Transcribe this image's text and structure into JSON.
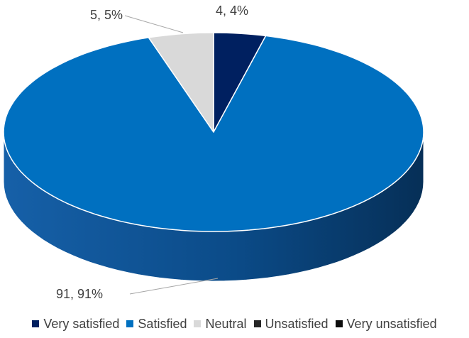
{
  "chart_data": {
    "type": "pie",
    "title": "",
    "three_d": true,
    "legend_position": "bottom",
    "label_format": "value, percent",
    "slices": [
      {
        "name": "Very satisfied",
        "value": 4,
        "percent": "4%",
        "label": "4, 4%",
        "color": "#002060"
      },
      {
        "name": "Satisfied",
        "value": 91,
        "percent": "91%",
        "label": "91, 91%",
        "color": "#0070C0"
      },
      {
        "name": "Neutral",
        "value": 5,
        "percent": "5%",
        "label": "5, 5%",
        "color": "#D9D9D9"
      },
      {
        "name": "Unsatisfied",
        "value": 0,
        "percent": "0%",
        "label": "",
        "color": "#262626"
      },
      {
        "name": "Very unsatisfied",
        "value": 0,
        "percent": "0%",
        "label": "",
        "color": "#0D0D0D"
      }
    ]
  }
}
